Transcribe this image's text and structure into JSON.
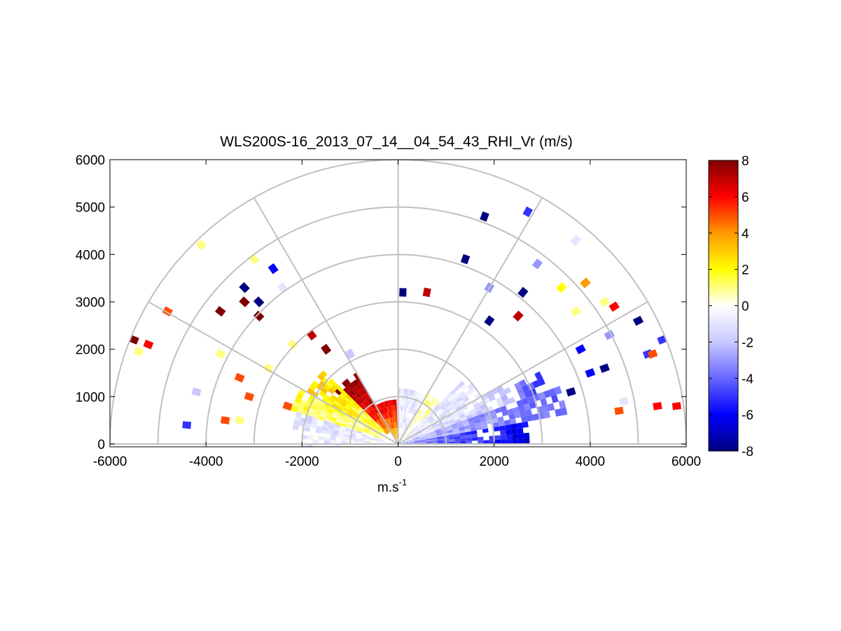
{
  "chart_data": {
    "type": "heatmap",
    "subtype": "polar-rhi-sector",
    "title": "WLS200S-16_2013_07_14__04_54_43_RHI_Vr (m/s)",
    "xlabel": "m.s",
    "xlabel_superscript": "-1",
    "xlim": [
      -6000,
      6000
    ],
    "ylim": [
      0,
      6000
    ],
    "xticks": [
      -6000,
      -4000,
      -2000,
      0,
      2000,
      4000,
      6000
    ],
    "yticks": [
      0,
      1000,
      2000,
      3000,
      4000,
      5000,
      6000
    ],
    "range_rings": [
      1000,
      2000,
      3000,
      4000,
      5000,
      6000
    ],
    "radial_lines_deg": [
      30,
      60,
      90,
      120,
      150
    ],
    "grid": true,
    "colorbar": {
      "label_position": "right",
      "range": [
        -8,
        8
      ],
      "ticks": [
        8,
        6,
        4,
        2,
        0,
        -2,
        -4,
        -6,
        -8
      ],
      "colors": [
        "#000080",
        "#0000ff",
        "#6666ff",
        "#c8c8ff",
        "#ffffff",
        "#ffff00",
        "#ff9900",
        "#ff0000",
        "#800000"
      ]
    },
    "sectors": [
      {
        "az_from": 0,
        "az_to": 10,
        "r_from": 100,
        "r_to": 2700,
        "vr": -5.5
      },
      {
        "az_from": 10,
        "az_to": 20,
        "r_from": 100,
        "r_to": 3500,
        "vr": -3.5
      },
      {
        "az_from": 20,
        "az_to": 30,
        "r_from": 200,
        "r_to": 2500,
        "vr": -1.5
      },
      {
        "az_from": 20,
        "az_to": 26,
        "r_from": 2600,
        "r_to": 3300,
        "vr": -5.0
      },
      {
        "az_from": 30,
        "az_to": 45,
        "r_from": 200,
        "r_to": 1900,
        "vr": -1.0
      },
      {
        "az_from": 45,
        "az_to": 60,
        "r_from": 150,
        "r_to": 1200,
        "vr": 0.5
      },
      {
        "az_from": 60,
        "az_to": 88,
        "r_from": 100,
        "r_to": 1100,
        "vr": -0.8
      },
      {
        "az_from": 92,
        "az_to": 120,
        "r_from": 100,
        "r_to": 900,
        "vr": 6.0
      },
      {
        "az_from": 120,
        "az_to": 140,
        "r_from": 300,
        "r_to": 1700,
        "vr": 7.5
      },
      {
        "az_from": 135,
        "az_to": 150,
        "r_from": 400,
        "r_to": 2200,
        "vr": 2.5
      },
      {
        "az_from": 150,
        "az_to": 162,
        "r_from": 300,
        "r_to": 2300,
        "vr": 1.5
      },
      {
        "az_from": 162,
        "az_to": 172,
        "r_from": 300,
        "r_to": 2200,
        "vr": -1.2
      },
      {
        "az_from": 172,
        "az_to": 180,
        "r_from": 100,
        "r_to": 2000,
        "vr": -0.6
      }
    ],
    "points": [
      {
        "x": 1800,
        "y": 4800,
        "vr": -8
      },
      {
        "x": 2700,
        "y": 4900,
        "vr": -5
      },
      {
        "x": 1400,
        "y": 3900,
        "vr": -8
      },
      {
        "x": 1900,
        "y": 3300,
        "vr": -3
      },
      {
        "x": 1900,
        "y": 2600,
        "vr": -8
      },
      {
        "x": 2500,
        "y": 2700,
        "vr": 7
      },
      {
        "x": 2600,
        "y": 3200,
        "vr": -8
      },
      {
        "x": 2900,
        "y": 3800,
        "vr": -3
      },
      {
        "x": 3700,
        "y": 4300,
        "vr": -1
      },
      {
        "x": 3400,
        "y": 3300,
        "vr": 2
      },
      {
        "x": 3700,
        "y": 2800,
        "vr": 1
      },
      {
        "x": 3900,
        "y": 3400,
        "vr": 4
      },
      {
        "x": 4300,
        "y": 3000,
        "vr": 1
      },
      {
        "x": 4500,
        "y": 2900,
        "vr": 6
      },
      {
        "x": 4400,
        "y": 2300,
        "vr": -3
      },
      {
        "x": 5000,
        "y": 2600,
        "vr": -8
      },
      {
        "x": 5200,
        "y": 1900,
        "vr": -5
      },
      {
        "x": 5500,
        "y": 2200,
        "vr": -5
      },
      {
        "x": 5300,
        "y": 1900,
        "vr": 5
      },
      {
        "x": 4700,
        "y": 900,
        "vr": -1
      },
      {
        "x": 5400,
        "y": 800,
        "vr": 6
      },
      {
        "x": 5800,
        "y": 800,
        "vr": 6
      },
      {
        "x": 4600,
        "y": 700,
        "vr": 5
      },
      {
        "x": 4300,
        "y": 1600,
        "vr": -8
      },
      {
        "x": 3600,
        "y": 1100,
        "vr": -8
      },
      {
        "x": 3800,
        "y": 2000,
        "vr": -6
      },
      {
        "x": 4000,
        "y": 1500,
        "vr": -6
      },
      {
        "x": 600,
        "y": 3200,
        "vr": 7
      },
      {
        "x": 100,
        "y": 3200,
        "vr": -8
      },
      {
        "x": -4100,
        "y": 4200,
        "vr": 1
      },
      {
        "x": -3000,
        "y": 3900,
        "vr": 1
      },
      {
        "x": -2600,
        "y": 3700,
        "vr": -6
      },
      {
        "x": -3700,
        "y": 2800,
        "vr": 8
      },
      {
        "x": -3200,
        "y": 3000,
        "vr": 8
      },
      {
        "x": -2900,
        "y": 2700,
        "vr": 8
      },
      {
        "x": -2900,
        "y": 3000,
        "vr": -8
      },
      {
        "x": -3200,
        "y": 3300,
        "vr": -8
      },
      {
        "x": -2400,
        "y": 3300,
        "vr": -1
      },
      {
        "x": -5500,
        "y": 2200,
        "vr": 8
      },
      {
        "x": -5200,
        "y": 2100,
        "vr": 6
      },
      {
        "x": -5400,
        "y": 1950,
        "vr": 1
      },
      {
        "x": -4800,
        "y": 2800,
        "vr": 5
      },
      {
        "x": -4200,
        "y": 1100,
        "vr": -2
      },
      {
        "x": -4400,
        "y": 400,
        "vr": -5
      },
      {
        "x": -3700,
        "y": 1900,
        "vr": 1
      },
      {
        "x": -2700,
        "y": 1600,
        "vr": 1
      },
      {
        "x": -3300,
        "y": 1400,
        "vr": 5
      },
      {
        "x": -3100,
        "y": 1000,
        "vr": 5
      },
      {
        "x": -2200,
        "y": 2100,
        "vr": 1
      },
      {
        "x": -1800,
        "y": 2300,
        "vr": 7
      },
      {
        "x": -1500,
        "y": 2000,
        "vr": 8
      },
      {
        "x": -1000,
        "y": 1900,
        "vr": -2
      },
      {
        "x": -2300,
        "y": 800,
        "vr": 5
      },
      {
        "x": -3600,
        "y": 500,
        "vr": 5
      },
      {
        "x": -3300,
        "y": 500,
        "vr": 1
      }
    ]
  }
}
